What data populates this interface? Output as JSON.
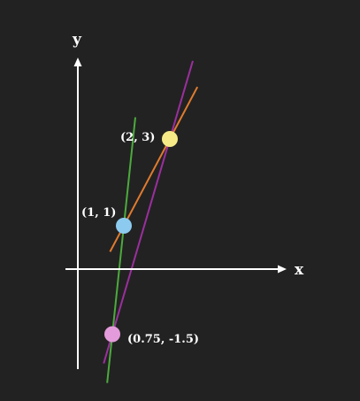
{
  "diagram": {
    "background": "#222222",
    "axis_color": "#ffffff",
    "x_axis_label": "x",
    "y_axis_label": "y"
  },
  "points": [
    {
      "id": "a",
      "label": "(2, 3)",
      "x": 2,
      "y": 3,
      "color": "#f5ea86"
    },
    {
      "id": "b",
      "label": "(1, 1)",
      "x": 1,
      "y": 1,
      "color": "#8ccbef"
    },
    {
      "id": "c",
      "label": "(0.75, -1.5)",
      "x": 0.75,
      "y": -1.5,
      "color": "#e49bdb"
    }
  ],
  "lines": [
    {
      "id": "orange",
      "through": [
        "b",
        "a"
      ],
      "color": "#e07b2e"
    },
    {
      "id": "purple",
      "through": [
        "c",
        "a"
      ],
      "color": "#9b2f9e"
    },
    {
      "id": "green",
      "through": [
        "c",
        "b"
      ],
      "color": "#4caa3d"
    }
  ]
}
